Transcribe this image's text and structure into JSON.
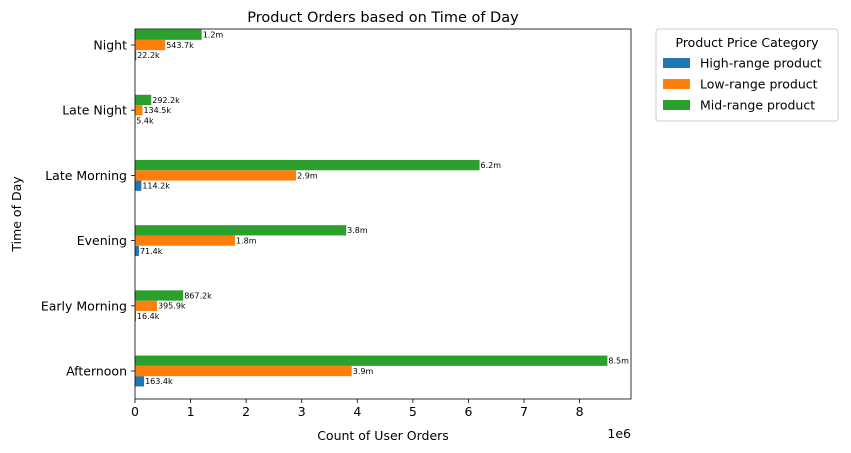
{
  "chart_data": {
    "type": "bar",
    "orientation": "horizontal",
    "title": "Product Orders based on Time of Day",
    "xlabel": "Count of User Orders",
    "ylabel": "Time of Day",
    "x_offset_label": "1e6",
    "xlim": [
      0,
      8.925
    ],
    "x_ticks": [
      "0",
      "1",
      "2",
      "3",
      "4",
      "5",
      "6",
      "7",
      "8"
    ],
    "categories": [
      "Afternoon",
      "Early Morning",
      "Evening",
      "Late Morning",
      "Late Night",
      "Night"
    ],
    "legend_title": "Product Price Category",
    "legend_position": "outside upper right",
    "grid": false,
    "series": [
      {
        "name": "High-range product",
        "color": "#1f77b4",
        "values": [
          163400,
          16400,
          71400,
          114200,
          5400,
          22200
        ],
        "labels": [
          "163.4k",
          "16.4k",
          "71.4k",
          "114.2k",
          "5.4k",
          "22.2k"
        ]
      },
      {
        "name": "Low-range product",
        "color": "#ff7f0e",
        "values": [
          3900000,
          395900,
          1800000,
          2900000,
          134500,
          543700
        ],
        "labels": [
          "3.9m",
          "395.9k",
          "1.8m",
          "2.9m",
          "134.5k",
          "543.7k"
        ]
      },
      {
        "name": "Mid-range product",
        "color": "#2ca02c",
        "values": [
          8500000,
          867200,
          3800000,
          6200000,
          292200,
          1200000
        ],
        "labels": [
          "8.5m",
          "867.2k",
          "3.8m",
          "6.2m",
          "292.2k",
          "1.2m"
        ]
      }
    ]
  }
}
